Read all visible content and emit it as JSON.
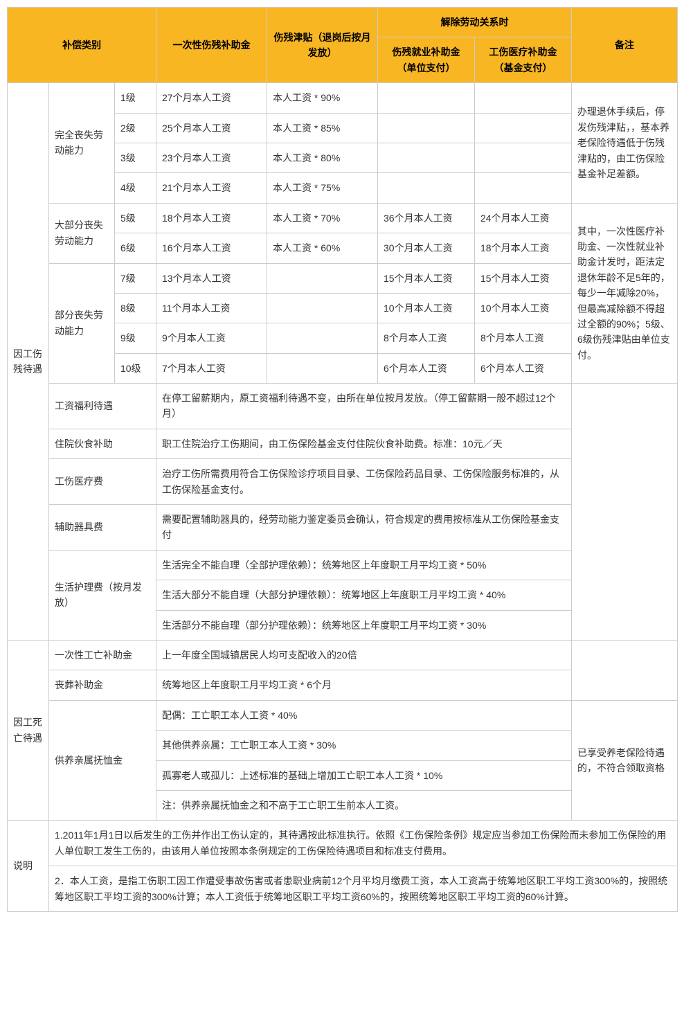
{
  "head": {
    "cat": "补偿类别",
    "lump": "一次性伤残补助金",
    "allowance": "伤残津贴（退岗后按月发放）",
    "termination": "解除劳动关系时",
    "t_emp": "伤残就业补助金（单位支付）",
    "t_med": "工伤医疗补助金（基金支付）",
    "remark": "备注"
  },
  "cats": {
    "injury": "因工伤残待遇",
    "death": "因工死亡待遇",
    "note": "说明"
  },
  "sub": {
    "full": "完全丧失劳动能力",
    "most": "大部分丧失劳动能力",
    "part": "部分丧失劳动能力",
    "wage": "工资福利待遇",
    "meal": "住院伙食补助",
    "medfee": "工伤医疗费",
    "aid": "辅助器具费",
    "care": "生活护理费（按月发放）",
    "d_lump": "一次性工亡补助金",
    "d_funeral": "丧葬补助金",
    "d_dep": "供养亲属抚恤金"
  },
  "lvl": {
    "l1": "1级",
    "l2": "2级",
    "l3": "3级",
    "l4": "4级",
    "l5": "5级",
    "l6": "6级",
    "l7": "7级",
    "l8": "8级",
    "l9": "9级",
    "l10": "10级"
  },
  "lump": {
    "l1": "27个月本人工资",
    "l2": "25个月本人工资",
    "l3": "23个月本人工资",
    "l4": "21个月本人工资",
    "l5": "18个月本人工资",
    "l6": "16个月本人工资",
    "l7": "13个月本人工资",
    "l8": "11个月本人工资",
    "l9": "9个月本人工资",
    "l10": "7个月本人工资"
  },
  "allow": {
    "l1": "本人工资 * 90%",
    "l2": "本人工资 * 85%",
    "l3": "本人工资 * 80%",
    "l4": "本人工资 * 75%",
    "l5": "本人工资 * 70%",
    "l6": "本人工资 * 60%"
  },
  "emp": {
    "l5": "36个月本人工资",
    "l6": "30个月本人工资",
    "l7": "15个月本人工资",
    "l8": "10个月本人工资",
    "l9": "8个月本人工资",
    "l10": "6个月本人工资"
  },
  "med": {
    "l5": "24个月本人工资",
    "l6": "18个月本人工资",
    "l7": "15个月本人工资",
    "l8": "10个月本人工资",
    "l9": "8个月本人工资",
    "l10": "6个月本人工资"
  },
  "rmk": {
    "r1": "办理退休手续后，停发伤残津贴，，基本养老保险待遇低于伤残津贴的，由工伤保险基金补足差额。",
    "r2": "其中，一次性医疗补助金、一次性就业补助金计发时，距法定退休年龄不足5年的，每少一年减除20%，但最高减除额不得超过全额的90%；5级、6级伤残津贴由单位支付。",
    "r3": "已享受养老保险待遇的，不符合领取资格"
  },
  "long": {
    "wage": "在停工留薪期内，原工资福利待遇不变，由所在单位按月发放。（停工留薪期一般不超过12个月）",
    "meal": "职工住院治疗工伤期间，由工伤保险基金支付住院伙食补助费。标准：10元／天",
    "medfee": "治疗工伤所需费用符合工伤保险诊疗项目目录、工伤保险药品目录、工伤保险服务标准的，从工伤保险基金支付。",
    "aid": "需要配置辅助器具的，经劳动能力鉴定委员会确认，符合规定的费用按标准从工伤保险基金支付",
    "care1": "生活完全不能自理（全部护理依赖）：统筹地区上年度职工月平均工资 * 50%",
    "care2": "生活大部分不能自理（大部分护理依赖）：统筹地区上年度职工月平均工资 * 40%",
    "care3": "生活部分不能自理（部分护理依赖）：统筹地区上年度职工月平均工资 * 30%",
    "d_lump": "上一年度全国城镇居民人均可支配收入的20倍",
    "d_funeral": "统筹地区上年度职工月平均工资 * 6个月",
    "dep1": "配偶：工亡职工本人工资 * 40%",
    "dep2": "其他供养亲属：工亡职工本人工资 * 30%",
    "dep3": "孤寡老人或孤儿：上述标准的基础上增加工亡职工本人工资 * 10%",
    "dep4": "注：供养亲属抚恤金之和不高于工亡职工生前本人工资。",
    "note1": "1.2011年1月1日以后发生的工伤并作出工伤认定的，其待遇按此标准执行。依照《工伤保险条例》规定应当参加工伤保险而未参加工伤保险的用人单位职工发生工伤的，由该用人单位按照本条例规定的工伤保险待遇项目和标准支付费用。",
    "note2": "2．本人工资，是指工伤职工因工作遭受事故伤害或者患职业病前12个月平均月缴费工资，本人工资高于统筹地区职工平均工资300%的，按照统筹地区职工平均工资的300%计算；本人工资低于统筹地区职工平均工资60%的，按照统筹地区职工平均工资的60%计算。"
  }
}
